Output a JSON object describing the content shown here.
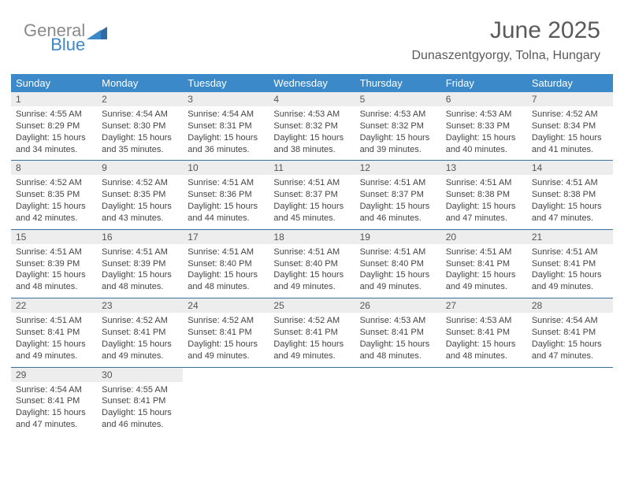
{
  "logo": {
    "part1": "General",
    "part2": "Blue"
  },
  "header": {
    "title": "June 2025",
    "location": "Dunaszentgyorgy, Tolna, Hungary"
  },
  "colors": {
    "header_bg": "#3b89c9",
    "header_text": "#ffffff",
    "daynum_bg": "#ededed",
    "week_border": "#3b6f96",
    "title_color": "#5a5a5a",
    "body_text": "#444444",
    "logo_gray": "#8a8a8a",
    "logo_blue": "#3b89c9"
  },
  "dayNames": [
    "Sunday",
    "Monday",
    "Tuesday",
    "Wednesday",
    "Thursday",
    "Friday",
    "Saturday"
  ],
  "weeks": [
    [
      {
        "n": "1",
        "sr": "Sunrise: 4:55 AM",
        "ss": "Sunset: 8:29 PM",
        "d1": "Daylight: 15 hours",
        "d2": "and 34 minutes."
      },
      {
        "n": "2",
        "sr": "Sunrise: 4:54 AM",
        "ss": "Sunset: 8:30 PM",
        "d1": "Daylight: 15 hours",
        "d2": "and 35 minutes."
      },
      {
        "n": "3",
        "sr": "Sunrise: 4:54 AM",
        "ss": "Sunset: 8:31 PM",
        "d1": "Daylight: 15 hours",
        "d2": "and 36 minutes."
      },
      {
        "n": "4",
        "sr": "Sunrise: 4:53 AM",
        "ss": "Sunset: 8:32 PM",
        "d1": "Daylight: 15 hours",
        "d2": "and 38 minutes."
      },
      {
        "n": "5",
        "sr": "Sunrise: 4:53 AM",
        "ss": "Sunset: 8:32 PM",
        "d1": "Daylight: 15 hours",
        "d2": "and 39 minutes."
      },
      {
        "n": "6",
        "sr": "Sunrise: 4:53 AM",
        "ss": "Sunset: 8:33 PM",
        "d1": "Daylight: 15 hours",
        "d2": "and 40 minutes."
      },
      {
        "n": "7",
        "sr": "Sunrise: 4:52 AM",
        "ss": "Sunset: 8:34 PM",
        "d1": "Daylight: 15 hours",
        "d2": "and 41 minutes."
      }
    ],
    [
      {
        "n": "8",
        "sr": "Sunrise: 4:52 AM",
        "ss": "Sunset: 8:35 PM",
        "d1": "Daylight: 15 hours",
        "d2": "and 42 minutes."
      },
      {
        "n": "9",
        "sr": "Sunrise: 4:52 AM",
        "ss": "Sunset: 8:35 PM",
        "d1": "Daylight: 15 hours",
        "d2": "and 43 minutes."
      },
      {
        "n": "10",
        "sr": "Sunrise: 4:51 AM",
        "ss": "Sunset: 8:36 PM",
        "d1": "Daylight: 15 hours",
        "d2": "and 44 minutes."
      },
      {
        "n": "11",
        "sr": "Sunrise: 4:51 AM",
        "ss": "Sunset: 8:37 PM",
        "d1": "Daylight: 15 hours",
        "d2": "and 45 minutes."
      },
      {
        "n": "12",
        "sr": "Sunrise: 4:51 AM",
        "ss": "Sunset: 8:37 PM",
        "d1": "Daylight: 15 hours",
        "d2": "and 46 minutes."
      },
      {
        "n": "13",
        "sr": "Sunrise: 4:51 AM",
        "ss": "Sunset: 8:38 PM",
        "d1": "Daylight: 15 hours",
        "d2": "and 47 minutes."
      },
      {
        "n": "14",
        "sr": "Sunrise: 4:51 AM",
        "ss": "Sunset: 8:38 PM",
        "d1": "Daylight: 15 hours",
        "d2": "and 47 minutes."
      }
    ],
    [
      {
        "n": "15",
        "sr": "Sunrise: 4:51 AM",
        "ss": "Sunset: 8:39 PM",
        "d1": "Daylight: 15 hours",
        "d2": "and 48 minutes."
      },
      {
        "n": "16",
        "sr": "Sunrise: 4:51 AM",
        "ss": "Sunset: 8:39 PM",
        "d1": "Daylight: 15 hours",
        "d2": "and 48 minutes."
      },
      {
        "n": "17",
        "sr": "Sunrise: 4:51 AM",
        "ss": "Sunset: 8:40 PM",
        "d1": "Daylight: 15 hours",
        "d2": "and 48 minutes."
      },
      {
        "n": "18",
        "sr": "Sunrise: 4:51 AM",
        "ss": "Sunset: 8:40 PM",
        "d1": "Daylight: 15 hours",
        "d2": "and 49 minutes."
      },
      {
        "n": "19",
        "sr": "Sunrise: 4:51 AM",
        "ss": "Sunset: 8:40 PM",
        "d1": "Daylight: 15 hours",
        "d2": "and 49 minutes."
      },
      {
        "n": "20",
        "sr": "Sunrise: 4:51 AM",
        "ss": "Sunset: 8:41 PM",
        "d1": "Daylight: 15 hours",
        "d2": "and 49 minutes."
      },
      {
        "n": "21",
        "sr": "Sunrise: 4:51 AM",
        "ss": "Sunset: 8:41 PM",
        "d1": "Daylight: 15 hours",
        "d2": "and 49 minutes."
      }
    ],
    [
      {
        "n": "22",
        "sr": "Sunrise: 4:51 AM",
        "ss": "Sunset: 8:41 PM",
        "d1": "Daylight: 15 hours",
        "d2": "and 49 minutes."
      },
      {
        "n": "23",
        "sr": "Sunrise: 4:52 AM",
        "ss": "Sunset: 8:41 PM",
        "d1": "Daylight: 15 hours",
        "d2": "and 49 minutes."
      },
      {
        "n": "24",
        "sr": "Sunrise: 4:52 AM",
        "ss": "Sunset: 8:41 PM",
        "d1": "Daylight: 15 hours",
        "d2": "and 49 minutes."
      },
      {
        "n": "25",
        "sr": "Sunrise: 4:52 AM",
        "ss": "Sunset: 8:41 PM",
        "d1": "Daylight: 15 hours",
        "d2": "and 49 minutes."
      },
      {
        "n": "26",
        "sr": "Sunrise: 4:53 AM",
        "ss": "Sunset: 8:41 PM",
        "d1": "Daylight: 15 hours",
        "d2": "and 48 minutes."
      },
      {
        "n": "27",
        "sr": "Sunrise: 4:53 AM",
        "ss": "Sunset: 8:41 PM",
        "d1": "Daylight: 15 hours",
        "d2": "and 48 minutes."
      },
      {
        "n": "28",
        "sr": "Sunrise: 4:54 AM",
        "ss": "Sunset: 8:41 PM",
        "d1": "Daylight: 15 hours",
        "d2": "and 47 minutes."
      }
    ],
    [
      {
        "n": "29",
        "sr": "Sunrise: 4:54 AM",
        "ss": "Sunset: 8:41 PM",
        "d1": "Daylight: 15 hours",
        "d2": "and 47 minutes."
      },
      {
        "n": "30",
        "sr": "Sunrise: 4:55 AM",
        "ss": "Sunset: 8:41 PM",
        "d1": "Daylight: 15 hours",
        "d2": "and 46 minutes."
      },
      null,
      null,
      null,
      null,
      null
    ]
  ]
}
